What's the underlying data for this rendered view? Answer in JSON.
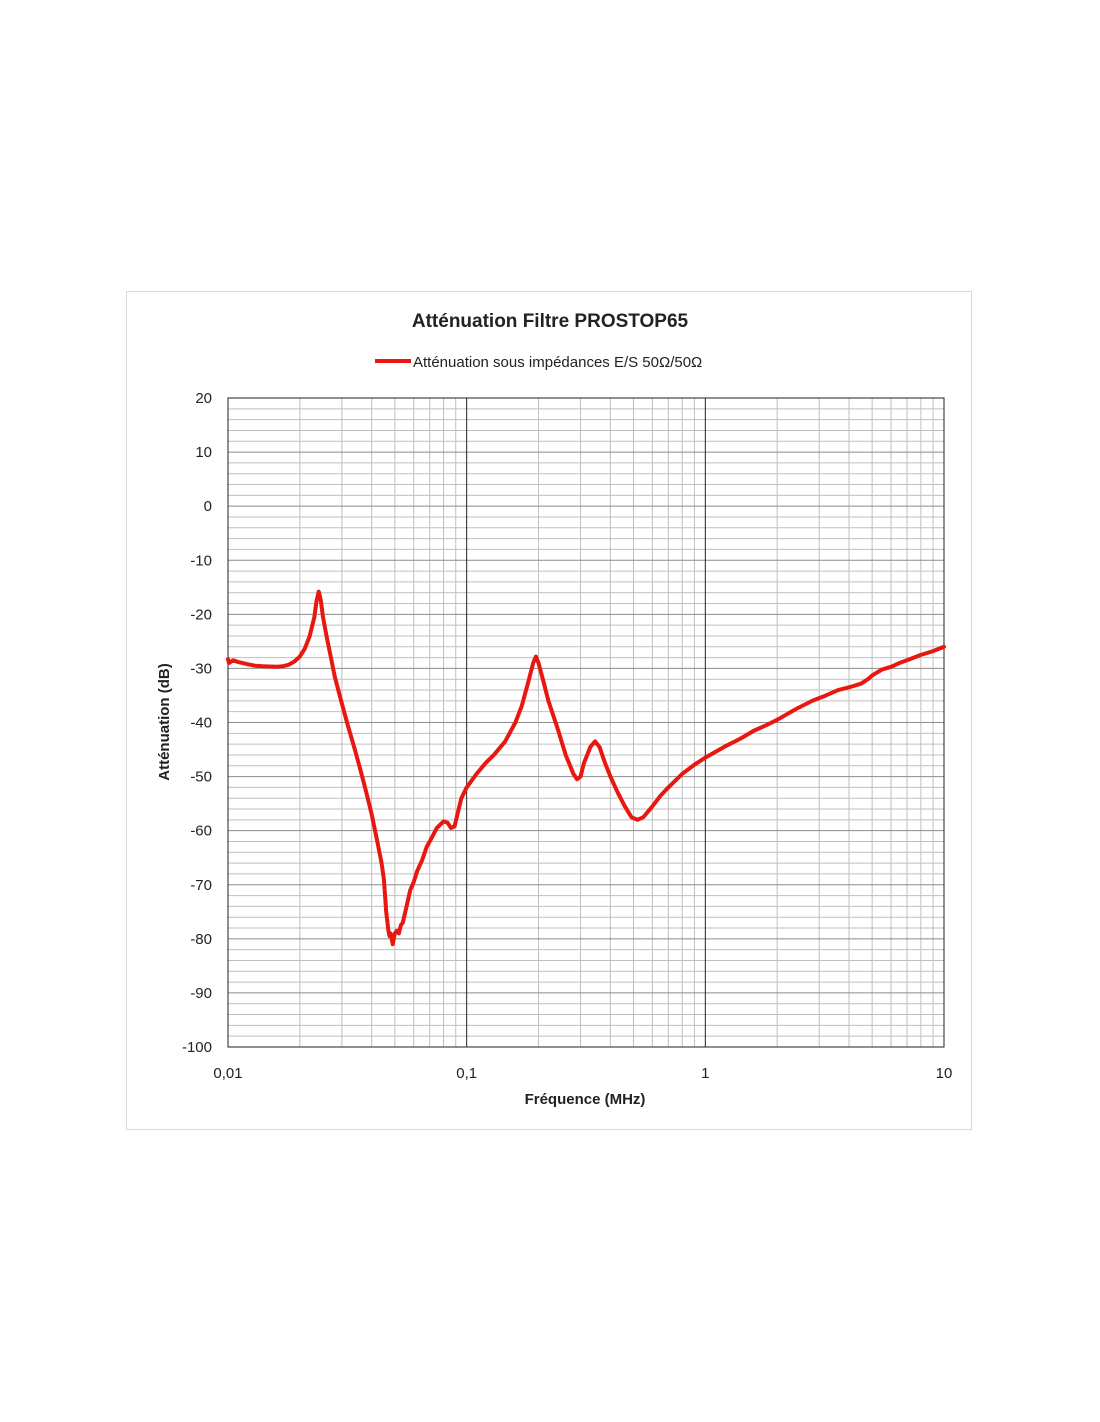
{
  "chart_data": {
    "type": "line",
    "title": "Atténuation  Filtre PROSTOP65",
    "xlabel": "Fréquence (MHz)",
    "ylabel": "Atténuation (dB)",
    "x_scale": "log",
    "xlim": [
      0.01,
      10
    ],
    "ylim": [
      -100,
      20
    ],
    "x_ticks": [
      "0,01",
      "0,1",
      "1",
      "10"
    ],
    "y_ticks": [
      "20",
      "10",
      "0",
      "-10",
      "-20",
      "-30",
      "-40",
      "-50",
      "-60",
      "-70",
      "-80",
      "-90",
      "-100"
    ],
    "grid": true,
    "legend_position": "top",
    "series": [
      {
        "name": "Atténuation sous impédances E/S 50Ω/50Ω",
        "color": "#e8170f",
        "points": [
          [
            0.01,
            -28.3
          ],
          [
            0.0101,
            -29.0
          ],
          [
            0.0105,
            -28.5
          ],
          [
            0.011,
            -28.8
          ],
          [
            0.012,
            -29.2
          ],
          [
            0.013,
            -29.5
          ],
          [
            0.014,
            -29.6
          ],
          [
            0.016,
            -29.7
          ],
          [
            0.017,
            -29.6
          ],
          [
            0.018,
            -29.3
          ],
          [
            0.019,
            -28.7
          ],
          [
            0.02,
            -27.8
          ],
          [
            0.021,
            -26.3
          ],
          [
            0.022,
            -24.0
          ],
          [
            0.023,
            -20.5
          ],
          [
            0.0235,
            -17.5
          ],
          [
            0.024,
            -15.8
          ],
          [
            0.0245,
            -17.5
          ],
          [
            0.025,
            -20.5
          ],
          [
            0.026,
            -24.5
          ],
          [
            0.027,
            -28.0
          ],
          [
            0.028,
            -31.5
          ],
          [
            0.03,
            -36.5
          ],
          [
            0.032,
            -41.0
          ],
          [
            0.034,
            -45.0
          ],
          [
            0.036,
            -49.0
          ],
          [
            0.038,
            -53.0
          ],
          [
            0.04,
            -57.0
          ],
          [
            0.042,
            -61.5
          ],
          [
            0.044,
            -66.0
          ],
          [
            0.045,
            -69.0
          ],
          [
            0.0455,
            -72.0
          ],
          [
            0.046,
            -75.0
          ],
          [
            0.047,
            -78.5
          ],
          [
            0.0475,
            -79.5
          ],
          [
            0.048,
            -79.0
          ],
          [
            0.0485,
            -80.0
          ],
          [
            0.049,
            -81.0
          ],
          [
            0.0495,
            -80.0
          ],
          [
            0.05,
            -79.0
          ],
          [
            0.051,
            -78.5
          ],
          [
            0.052,
            -79.0
          ],
          [
            0.053,
            -77.5
          ],
          [
            0.054,
            -77.0
          ],
          [
            0.056,
            -74.0
          ],
          [
            0.058,
            -71.0
          ],
          [
            0.06,
            -69.5
          ],
          [
            0.062,
            -67.5
          ],
          [
            0.065,
            -65.5
          ],
          [
            0.068,
            -63.0
          ],
          [
            0.071,
            -61.5
          ],
          [
            0.075,
            -59.5
          ],
          [
            0.08,
            -58.3
          ],
          [
            0.083,
            -58.5
          ],
          [
            0.086,
            -59.5
          ],
          [
            0.089,
            -59.2
          ],
          [
            0.092,
            -56.5
          ],
          [
            0.095,
            -54.0
          ],
          [
            0.1,
            -52.0
          ],
          [
            0.11,
            -49.5
          ],
          [
            0.12,
            -47.5
          ],
          [
            0.13,
            -46.0
          ],
          [
            0.145,
            -43.5
          ],
          [
            0.16,
            -40.0
          ],
          [
            0.17,
            -37.0
          ],
          [
            0.18,
            -33.0
          ],
          [
            0.19,
            -29.0
          ],
          [
            0.195,
            -27.8
          ],
          [
            0.2,
            -29.0
          ],
          [
            0.21,
            -32.5
          ],
          [
            0.22,
            -36.0
          ],
          [
            0.24,
            -41.0
          ],
          [
            0.26,
            -46.0
          ],
          [
            0.28,
            -49.5
          ],
          [
            0.29,
            -50.5
          ],
          [
            0.3,
            -50.0
          ],
          [
            0.31,
            -47.5
          ],
          [
            0.33,
            -44.5
          ],
          [
            0.345,
            -43.5
          ],
          [
            0.36,
            -44.5
          ],
          [
            0.38,
            -47.5
          ],
          [
            0.4,
            -50.0
          ],
          [
            0.43,
            -53.0
          ],
          [
            0.46,
            -55.5
          ],
          [
            0.49,
            -57.5
          ],
          [
            0.52,
            -58.0
          ],
          [
            0.55,
            -57.5
          ],
          [
            0.6,
            -55.5
          ],
          [
            0.65,
            -53.5
          ],
          [
            0.7,
            -52.0
          ],
          [
            0.8,
            -49.5
          ],
          [
            0.9,
            -47.8
          ],
          [
            1.0,
            -46.5
          ],
          [
            1.2,
            -44.5
          ],
          [
            1.4,
            -43.0
          ],
          [
            1.6,
            -41.5
          ],
          [
            1.8,
            -40.5
          ],
          [
            2.0,
            -39.5
          ],
          [
            2.4,
            -37.5
          ],
          [
            2.8,
            -36.0
          ],
          [
            3.2,
            -35.0
          ],
          [
            3.6,
            -34.0
          ],
          [
            4.0,
            -33.5
          ],
          [
            4.5,
            -32.8
          ],
          [
            4.8,
            -32.0
          ],
          [
            5.0,
            -31.3
          ],
          [
            5.5,
            -30.2
          ],
          [
            6.0,
            -29.7
          ],
          [
            6.5,
            -29.0
          ],
          [
            7.0,
            -28.5
          ],
          [
            8.0,
            -27.5
          ],
          [
            9.0,
            -26.8
          ],
          [
            10.0,
            -26.0
          ]
        ]
      }
    ]
  }
}
